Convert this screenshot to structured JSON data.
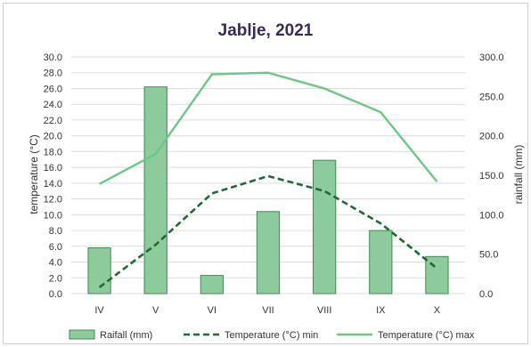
{
  "chart_data": {
    "type": "bar",
    "title": "Jablje, 2021",
    "categories": [
      "IV",
      "V",
      "VI",
      "VII",
      "VIII",
      "IX",
      "X"
    ],
    "y_left": {
      "label": "temperature (°C)",
      "ylim": [
        0,
        30
      ],
      "ticks": [
        "0.0",
        "2.0",
        "4.0",
        "6.0",
        "8.0",
        "10.0",
        "12.0",
        "14.0",
        "16.0",
        "18.0",
        "20.0",
        "22.0",
        "24.0",
        "26.0",
        "28.0",
        "30.0"
      ]
    },
    "y_right": {
      "label": "rainfall (mm)",
      "ylim": [
        0,
        300
      ],
      "ticks": [
        "0.0",
        "50.0",
        "100.0",
        "150.0",
        "200.0",
        "250.0",
        "300.0"
      ]
    },
    "grid": true,
    "legend_position": "bottom",
    "series": [
      {
        "name": "Raifall (mm)",
        "type": "bar",
        "axis": "right",
        "color": "#8dcb9c",
        "values": [
          58,
          262,
          23,
          104,
          169,
          80,
          47
        ]
      },
      {
        "name": "Temperature (°C) min",
        "type": "line",
        "style": "dashed",
        "axis": "left",
        "color": "#1e6b34",
        "values": [
          0.8,
          6.2,
          12.7,
          14.9,
          13.0,
          8.9,
          3.2
        ]
      },
      {
        "name": "Temperature (°C) max",
        "type": "line",
        "style": "solid",
        "axis": "left",
        "color": "#6cc784",
        "values": [
          13.9,
          17.7,
          27.8,
          28.0,
          26.0,
          23.0,
          14.2
        ]
      }
    ]
  }
}
